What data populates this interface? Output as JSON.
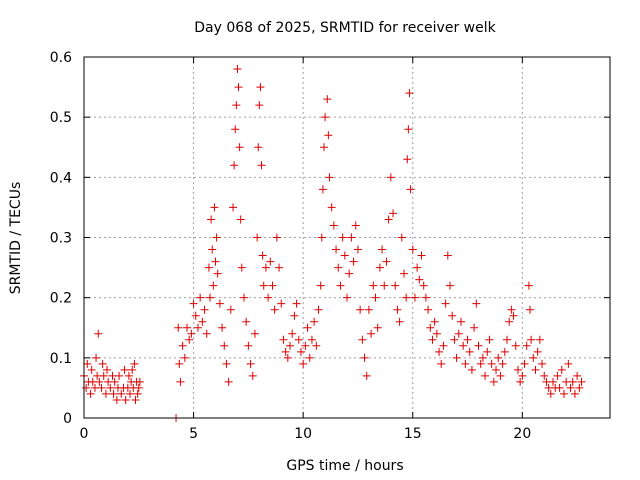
{
  "chart_data": {
    "type": "scatter",
    "title": "Day 068 of 2025, SRMTID for receiver welk",
    "xlabel": "GPS time / hours",
    "ylabel": "SRMTID / TECUs",
    "xlim": [
      0,
      24
    ],
    "ylim": [
      0,
      0.6
    ],
    "xticks": [
      0,
      5,
      10,
      15,
      20
    ],
    "xtick_labels": [
      "0",
      "5",
      "10",
      "15",
      "20"
    ],
    "yticks": [
      0,
      0.1,
      0.2,
      0.3,
      0.4,
      0.5,
      0.6
    ],
    "ytick_labels": [
      "0",
      "0.1",
      "0.2",
      "0.3",
      "0.4",
      "0.5",
      "0.6"
    ],
    "grid": true,
    "marker": "plus",
    "color": "#e00000",
    "series": [
      {
        "name": "SRMTID",
        "points": [
          [
            0.0,
            0.07
          ],
          [
            0.1,
            0.05
          ],
          [
            0.15,
            0.09
          ],
          [
            0.2,
            0.06
          ],
          [
            0.3,
            0.04
          ],
          [
            0.35,
            0.08
          ],
          [
            0.4,
            0.06
          ],
          [
            0.5,
            0.05
          ],
          [
            0.55,
            0.1
          ],
          [
            0.6,
            0.07
          ],
          [
            0.65,
            0.14
          ],
          [
            0.7,
            0.06
          ],
          [
            0.8,
            0.05
          ],
          [
            0.85,
            0.09
          ],
          [
            0.9,
            0.07
          ],
          [
            1.0,
            0.04
          ],
          [
            1.05,
            0.08
          ],
          [
            1.1,
            0.06
          ],
          [
            1.2,
            0.05
          ],
          [
            1.3,
            0.07
          ],
          [
            1.35,
            0.04
          ],
          [
            1.4,
            0.06
          ],
          [
            1.5,
            0.03
          ],
          [
            1.55,
            0.05
          ],
          [
            1.6,
            0.07
          ],
          [
            1.7,
            0.04
          ],
          [
            1.8,
            0.05
          ],
          [
            1.85,
            0.08
          ],
          [
            1.9,
            0.03
          ],
          [
            2.0,
            0.05
          ],
          [
            2.05,
            0.07
          ],
          [
            2.1,
            0.04
          ],
          [
            2.15,
            0.06
          ],
          [
            2.2,
            0.08
          ],
          [
            2.25,
            0.05
          ],
          [
            2.3,
            0.09
          ],
          [
            2.35,
            0.03
          ],
          [
            2.4,
            0.06
          ],
          [
            2.45,
            0.04
          ],
          [
            2.5,
            0.05
          ],
          [
            2.55,
            0.06
          ],
          [
            4.2,
            0.0
          ],
          [
            4.3,
            0.15
          ],
          [
            4.35,
            0.09
          ],
          [
            4.4,
            0.06
          ],
          [
            4.5,
            0.12
          ],
          [
            4.6,
            0.1
          ],
          [
            4.7,
            0.15
          ],
          [
            4.8,
            0.13
          ],
          [
            4.9,
            0.14
          ],
          [
            5.0,
            0.19
          ],
          [
            5.1,
            0.17
          ],
          [
            5.2,
            0.15
          ],
          [
            5.3,
            0.2
          ],
          [
            5.4,
            0.16
          ],
          [
            5.5,
            0.18
          ],
          [
            5.6,
            0.14
          ],
          [
            5.7,
            0.25
          ],
          [
            5.75,
            0.2
          ],
          [
            5.8,
            0.33
          ],
          [
            5.85,
            0.28
          ],
          [
            5.9,
            0.22
          ],
          [
            5.95,
            0.35
          ],
          [
            6.0,
            0.26
          ],
          [
            6.05,
            0.3
          ],
          [
            6.1,
            0.24
          ],
          [
            6.2,
            0.19
          ],
          [
            6.3,
            0.15
          ],
          [
            6.4,
            0.12
          ],
          [
            6.5,
            0.09
          ],
          [
            6.6,
            0.06
          ],
          [
            6.7,
            0.18
          ],
          [
            6.8,
            0.35
          ],
          [
            6.85,
            0.42
          ],
          [
            6.9,
            0.48
          ],
          [
            6.95,
            0.52
          ],
          [
            7.0,
            0.58
          ],
          [
            7.05,
            0.55
          ],
          [
            7.1,
            0.45
          ],
          [
            7.15,
            0.33
          ],
          [
            7.2,
            0.25
          ],
          [
            7.3,
            0.2
          ],
          [
            7.4,
            0.16
          ],
          [
            7.5,
            0.12
          ],
          [
            7.6,
            0.09
          ],
          [
            7.7,
            0.07
          ],
          [
            7.8,
            0.14
          ],
          [
            7.9,
            0.3
          ],
          [
            7.95,
            0.45
          ],
          [
            8.0,
            0.52
          ],
          [
            8.05,
            0.55
          ],
          [
            8.1,
            0.42
          ],
          [
            8.15,
            0.27
          ],
          [
            8.2,
            0.22
          ],
          [
            8.3,
            0.25
          ],
          [
            8.4,
            0.2
          ],
          [
            8.5,
            0.26
          ],
          [
            8.6,
            0.22
          ],
          [
            8.7,
            0.18
          ],
          [
            8.8,
            0.3
          ],
          [
            8.9,
            0.25
          ],
          [
            9.0,
            0.19
          ],
          [
            9.1,
            0.13
          ],
          [
            9.2,
            0.11
          ],
          [
            9.3,
            0.1
          ],
          [
            9.4,
            0.12
          ],
          [
            9.5,
            0.14
          ],
          [
            9.6,
            0.17
          ],
          [
            9.7,
            0.19
          ],
          [
            9.8,
            0.13
          ],
          [
            9.9,
            0.11
          ],
          [
            10.0,
            0.09
          ],
          [
            10.1,
            0.12
          ],
          [
            10.2,
            0.15
          ],
          [
            10.3,
            0.1
          ],
          [
            10.4,
            0.13
          ],
          [
            10.5,
            0.16
          ],
          [
            10.6,
            0.12
          ],
          [
            10.7,
            0.18
          ],
          [
            10.8,
            0.22
          ],
          [
            10.85,
            0.3
          ],
          [
            10.9,
            0.38
          ],
          [
            10.95,
            0.45
          ],
          [
            11.0,
            0.5
          ],
          [
            11.1,
            0.53
          ],
          [
            11.15,
            0.47
          ],
          [
            11.2,
            0.4
          ],
          [
            11.3,
            0.35
          ],
          [
            11.4,
            0.32
          ],
          [
            11.5,
            0.28
          ],
          [
            11.6,
            0.25
          ],
          [
            11.7,
            0.22
          ],
          [
            11.8,
            0.3
          ],
          [
            11.9,
            0.27
          ],
          [
            12.0,
            0.2
          ],
          [
            12.1,
            0.24
          ],
          [
            12.2,
            0.3
          ],
          [
            12.3,
            0.26
          ],
          [
            12.4,
            0.32
          ],
          [
            12.5,
            0.28
          ],
          [
            12.6,
            0.18
          ],
          [
            12.7,
            0.13
          ],
          [
            12.8,
            0.1
          ],
          [
            12.9,
            0.07
          ],
          [
            13.0,
            0.18
          ],
          [
            13.1,
            0.14
          ],
          [
            13.2,
            0.22
          ],
          [
            13.3,
            0.2
          ],
          [
            13.4,
            0.15
          ],
          [
            13.5,
            0.25
          ],
          [
            13.6,
            0.28
          ],
          [
            13.7,
            0.22
          ],
          [
            13.8,
            0.26
          ],
          [
            13.9,
            0.33
          ],
          [
            14.0,
            0.4
          ],
          [
            14.1,
            0.34
          ],
          [
            14.2,
            0.22
          ],
          [
            14.3,
            0.18
          ],
          [
            14.4,
            0.16
          ],
          [
            14.5,
            0.3
          ],
          [
            14.6,
            0.24
          ],
          [
            14.7,
            0.2
          ],
          [
            14.75,
            0.43
          ],
          [
            14.8,
            0.48
          ],
          [
            14.85,
            0.54
          ],
          [
            14.9,
            0.38
          ],
          [
            15.0,
            0.28
          ],
          [
            15.1,
            0.2
          ],
          [
            15.2,
            0.25
          ],
          [
            15.3,
            0.23
          ],
          [
            15.4,
            0.27
          ],
          [
            15.5,
            0.22
          ],
          [
            15.6,
            0.2
          ],
          [
            15.7,
            0.18
          ],
          [
            15.8,
            0.15
          ],
          [
            15.9,
            0.13
          ],
          [
            16.0,
            0.16
          ],
          [
            16.1,
            0.14
          ],
          [
            16.2,
            0.11
          ],
          [
            16.3,
            0.09
          ],
          [
            16.4,
            0.12
          ],
          [
            16.5,
            0.19
          ],
          [
            16.6,
            0.27
          ],
          [
            16.7,
            0.22
          ],
          [
            16.8,
            0.17
          ],
          [
            16.9,
            0.13
          ],
          [
            17.0,
            0.1
          ],
          [
            17.1,
            0.14
          ],
          [
            17.2,
            0.16
          ],
          [
            17.3,
            0.12
          ],
          [
            17.4,
            0.09
          ],
          [
            17.5,
            0.13
          ],
          [
            17.6,
            0.11
          ],
          [
            17.7,
            0.08
          ],
          [
            17.8,
            0.15
          ],
          [
            17.9,
            0.19
          ],
          [
            18.0,
            0.12
          ],
          [
            18.1,
            0.09
          ],
          [
            18.2,
            0.1
          ],
          [
            18.3,
            0.07
          ],
          [
            18.4,
            0.11
          ],
          [
            18.5,
            0.13
          ],
          [
            18.6,
            0.09
          ],
          [
            18.7,
            0.06
          ],
          [
            18.8,
            0.08
          ],
          [
            18.9,
            0.1
          ],
          [
            19.0,
            0.07
          ],
          [
            19.1,
            0.09
          ],
          [
            19.2,
            0.11
          ],
          [
            19.3,
            0.13
          ],
          [
            19.4,
            0.16
          ],
          [
            19.5,
            0.18
          ],
          [
            19.6,
            0.17
          ],
          [
            19.7,
            0.12
          ],
          [
            19.8,
            0.08
          ],
          [
            19.9,
            0.06
          ],
          [
            20.0,
            0.07
          ],
          [
            20.1,
            0.09
          ],
          [
            20.2,
            0.12
          ],
          [
            20.3,
            0.22
          ],
          [
            20.35,
            0.18
          ],
          [
            20.4,
            0.13
          ],
          [
            20.5,
            0.1
          ],
          [
            20.6,
            0.08
          ],
          [
            20.7,
            0.11
          ],
          [
            20.8,
            0.13
          ],
          [
            20.9,
            0.09
          ],
          [
            21.0,
            0.07
          ],
          [
            21.1,
            0.06
          ],
          [
            21.2,
            0.05
          ],
          [
            21.3,
            0.04
          ],
          [
            21.4,
            0.06
          ],
          [
            21.5,
            0.05
          ],
          [
            21.6,
            0.07
          ],
          [
            21.7,
            0.05
          ],
          [
            21.8,
            0.08
          ],
          [
            21.9,
            0.04
          ],
          [
            22.0,
            0.06
          ],
          [
            22.1,
            0.09
          ],
          [
            22.2,
            0.05
          ],
          [
            22.3,
            0.06
          ],
          [
            22.4,
            0.04
          ],
          [
            22.5,
            0.07
          ],
          [
            22.6,
            0.05
          ],
          [
            22.7,
            0.06
          ]
        ]
      }
    ]
  }
}
